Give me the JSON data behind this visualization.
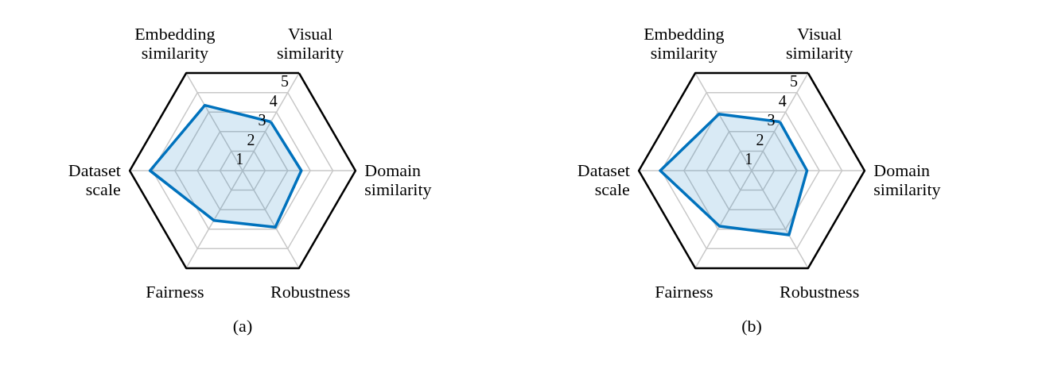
{
  "chart_data": [
    {
      "type": "radar",
      "title": "(a)",
      "categories": [
        "Visual similarity",
        "Domain similarity",
        "Robustness",
        "Fairness",
        "Dataset scale",
        "Embedding similarity"
      ],
      "series": [
        {
          "color": "#0072bd",
          "values": [
            2.5,
            2.6,
            2.9,
            2.55,
            4.1,
            3.35
          ]
        }
      ],
      "ylim": [
        0,
        5
      ],
      "yticks": [
        1,
        2,
        3,
        4,
        5
      ],
      "grid": true
    },
    {
      "type": "radar",
      "title": "(b)",
      "categories": [
        "Visual similarity",
        "Domain similarity",
        "Robustness",
        "Fairness",
        "Dataset scale",
        "Embedding similarity"
      ],
      "series": [
        {
          "color": "#0072bd",
          "values": [
            2.5,
            2.45,
            3.3,
            2.85,
            4.05,
            2.9
          ]
        }
      ],
      "ylim": [
        0,
        5
      ],
      "yticks": [
        1,
        2,
        3,
        4,
        5
      ],
      "grid": true
    }
  ]
}
